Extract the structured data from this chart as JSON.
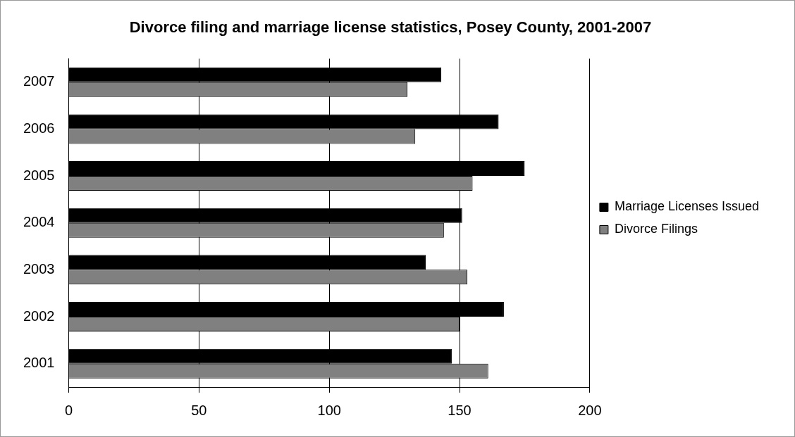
{
  "chart_data": {
    "type": "bar",
    "orientation": "horizontal",
    "title": "Divorce filing and marriage license statistics, Posey County, 2001-2007",
    "categories": [
      "2007",
      "2006",
      "2005",
      "2004",
      "2003",
      "2002",
      "2001"
    ],
    "series": [
      {
        "name": "Marriage Licenses Issued",
        "color": "#000000",
        "values": [
          143,
          165,
          175,
          151,
          137,
          167,
          147
        ]
      },
      {
        "name": "Divorce Filings",
        "color": "#808080",
        "values": [
          130,
          133,
          155,
          144,
          153,
          150,
          161
        ]
      }
    ],
    "xlim": [
      0,
      200
    ],
    "xticks": [
      0,
      50,
      100,
      150,
      200
    ],
    "grid": "x",
    "legend": "right"
  }
}
